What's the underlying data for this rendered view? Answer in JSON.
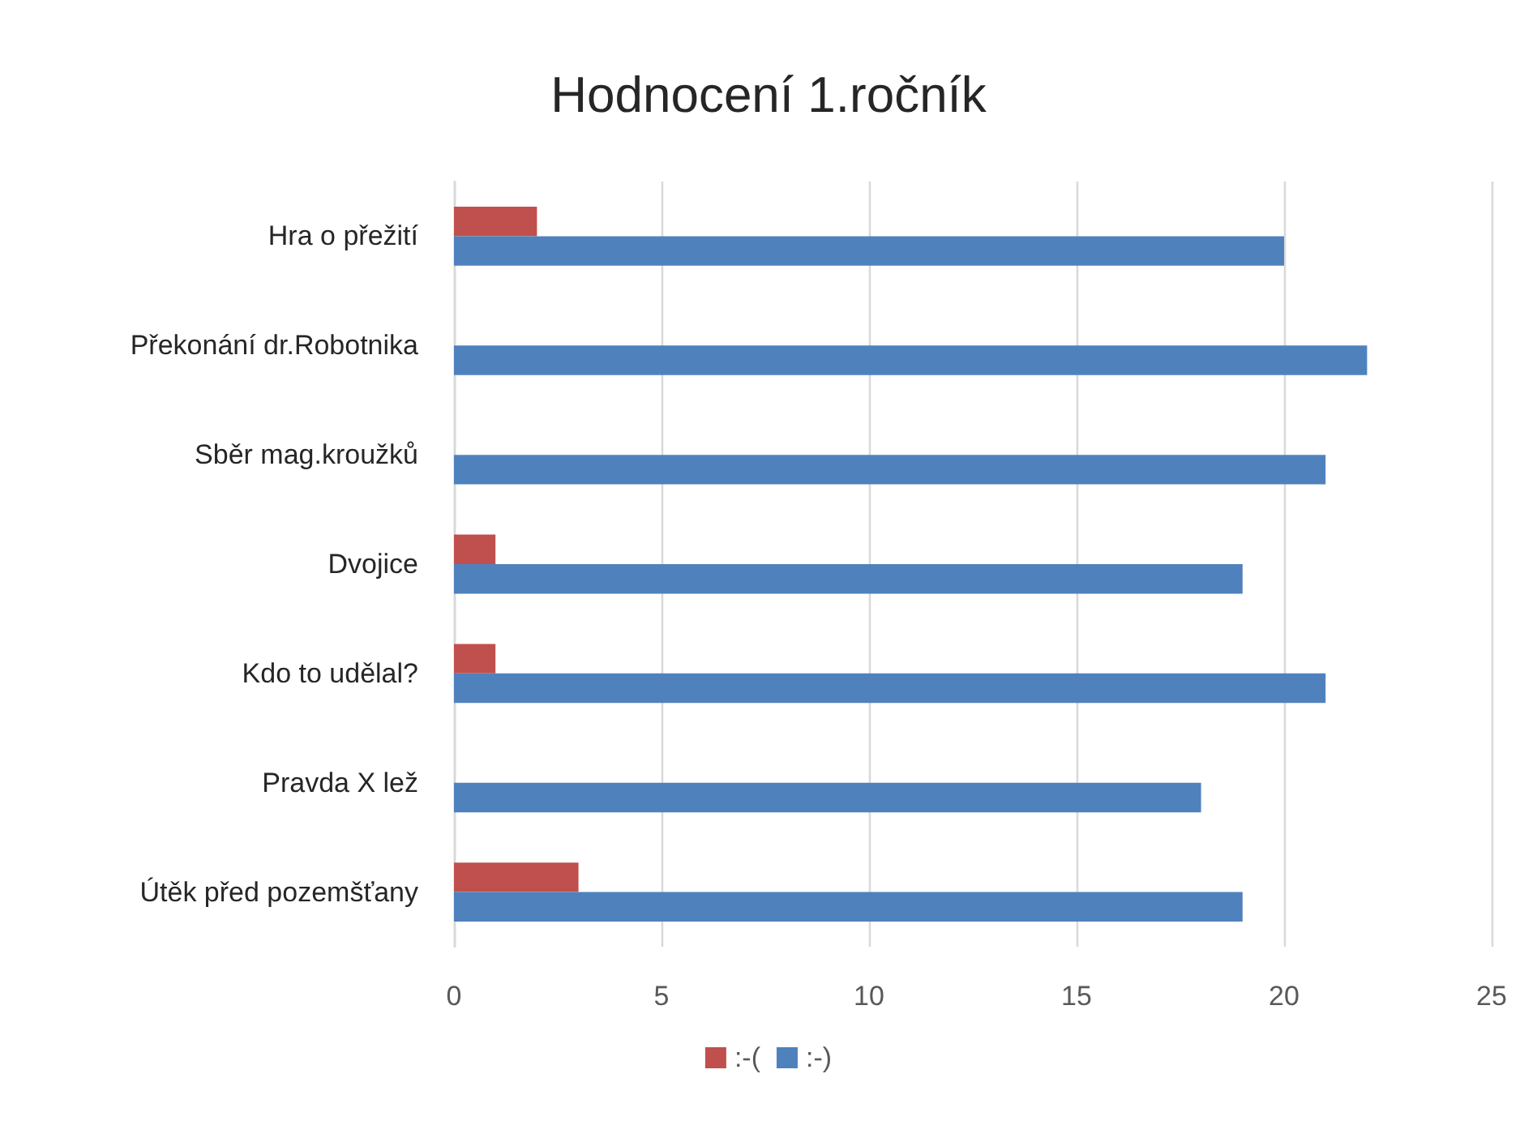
{
  "chart_data": {
    "type": "bar",
    "orientation": "horizontal",
    "title": "Hodnocení 1.ročník",
    "categories": [
      "Hra o přežití",
      "Překonání dr.Robotnika",
      "Sběr mag.kroužků",
      "Dvojice",
      "Kdo to udělal?",
      "Pravda X lež",
      "Útěk před pozemšťany"
    ],
    "series": [
      {
        "name": ":-(",
        "color": "#c0504d",
        "values": [
          2,
          0,
          0,
          1,
          1,
          0,
          3
        ]
      },
      {
        "name": ":-)",
        "color": "#4f81bd",
        "values": [
          20,
          22,
          21,
          19,
          21,
          18,
          19
        ]
      }
    ],
    "xlim": [
      0,
      25
    ],
    "xticks": [
      0,
      5,
      10,
      15,
      20,
      25
    ],
    "grid": "x",
    "legend": "bottom"
  }
}
